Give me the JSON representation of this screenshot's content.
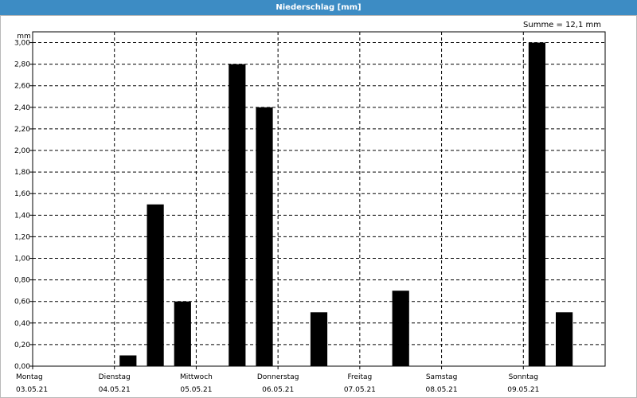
{
  "window": {
    "title": "Niederschlag [mm]"
  },
  "summary": {
    "text": "Summe = 12,1 mm"
  },
  "chart_data": {
    "type": "bar",
    "title": "Niederschlag [mm]",
    "ylabel": "mm",
    "ylim": [
      0,
      3.1
    ],
    "yticks": [
      "0,00",
      "0,20",
      "0,40",
      "0,60",
      "0,80",
      "1,00",
      "1,20",
      "1,40",
      "1,60",
      "1,80",
      "2,00",
      "2,20",
      "2,40",
      "2,60",
      "2,80",
      "3,00"
    ],
    "days": [
      {
        "name": "Montag",
        "date": "03.05.21"
      },
      {
        "name": "Dienstag",
        "date": "04.05.21"
      },
      {
        "name": "Mittwoch",
        "date": "05.05.21"
      },
      {
        "name": "Donnerstag",
        "date": "06.05.21"
      },
      {
        "name": "Freitag",
        "date": "07.05.21"
      },
      {
        "name": "Samstag",
        "date": "08.05.21"
      },
      {
        "name": "Sonntag",
        "date": "09.05.21"
      }
    ],
    "interval_hours": 8,
    "values": [
      0,
      0,
      0,
      0.1,
      1.5,
      0.6,
      0,
      2.8,
      2.4,
      0,
      0.5,
      0,
      0,
      0.7,
      0,
      0,
      0,
      0,
      3.0,
      0.5,
      0
    ],
    "grid": true,
    "bar_color": "#000000"
  }
}
